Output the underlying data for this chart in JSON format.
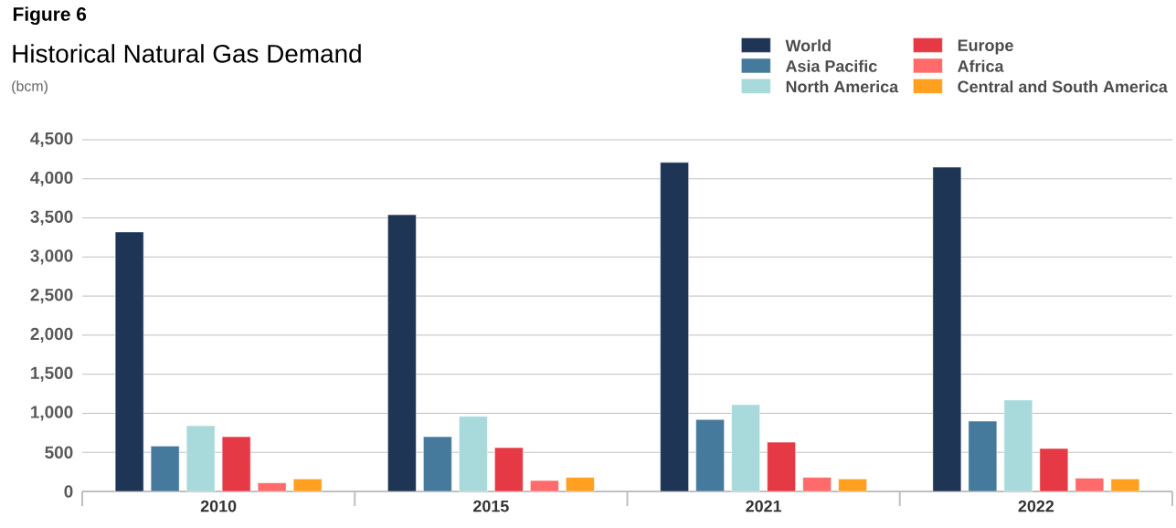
{
  "chart_data": {
    "type": "bar",
    "title": "Historical Natural Gas Demand",
    "ylabel": "(bcm)",
    "annotations": [
      "Figure 6"
    ],
    "categories": [
      "2010",
      "2015",
      "2021",
      "2022"
    ],
    "series": [
      {
        "name": "World",
        "color": "#1f3556",
        "values": [
          3320,
          3540,
          4210,
          4150
        ]
      },
      {
        "name": "Asia Pacific",
        "color": "#467a9c",
        "values": [
          580,
          700,
          920,
          900
        ]
      },
      {
        "name": "North America",
        "color": "#a8d9db",
        "values": [
          840,
          960,
          1110,
          1170
        ]
      },
      {
        "name": "Europe",
        "color": "#e63946",
        "values": [
          700,
          560,
          630,
          550
        ]
      },
      {
        "name": "Africa",
        "color": "#ff6b6b",
        "values": [
          110,
          140,
          180,
          170
        ]
      },
      {
        "name": "Central and South America",
        "color": "#ffa020",
        "values": [
          160,
          180,
          160,
          160
        ]
      }
    ],
    "ylim": [
      0,
      4500
    ],
    "yticks": [
      0,
      500,
      {
        "value": 1000,
        "label": "1,000"
      },
      {
        "value": 1500,
        "label": "1,500"
      },
      {
        "value": 2000,
        "label": "2,000"
      },
      {
        "value": 2500,
        "label": "2,500"
      },
      {
        "value": 3000,
        "label": "3,000"
      },
      {
        "value": 3500,
        "label": "3,500"
      },
      {
        "value": 4000,
        "label": "4,000"
      },
      {
        "value": 4500,
        "label": "4,500"
      }
    ],
    "grid": "y",
    "legend": "top right"
  }
}
